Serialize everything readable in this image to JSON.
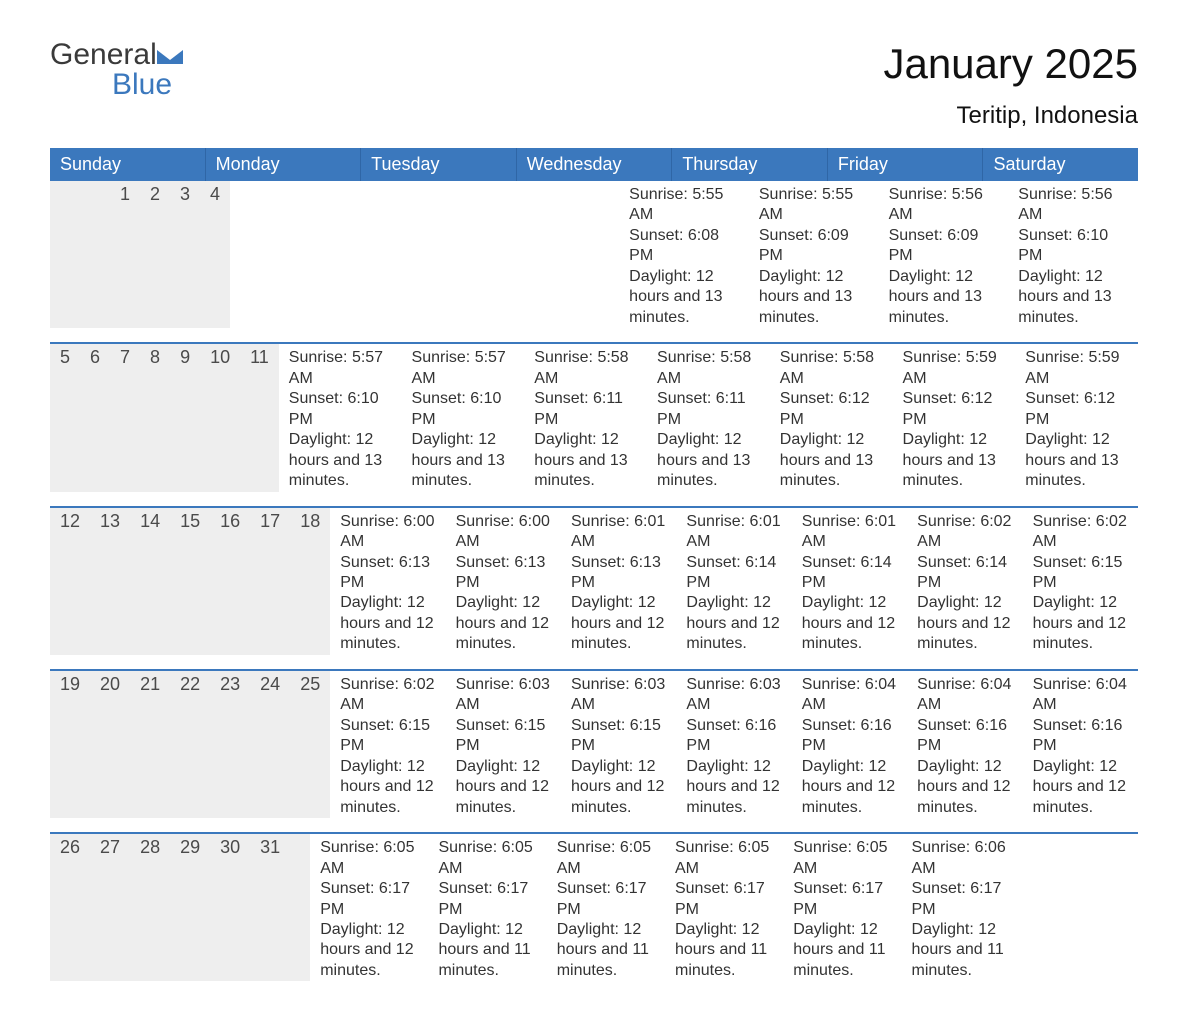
{
  "colors": {
    "accent": "#3b78bd",
    "accent_dark": "#2f66a6",
    "row_head_bg": "#eeeeee",
    "text": "#222222",
    "background": "#ffffff"
  },
  "logo": {
    "word1": "General",
    "word2": "Blue"
  },
  "title": "January 2025",
  "subtitle": "Teritip, Indonesia",
  "weekdays": [
    "Sunday",
    "Monday",
    "Tuesday",
    "Wednesday",
    "Thursday",
    "Friday",
    "Saturday"
  ],
  "weeks": [
    [
      null,
      null,
      null,
      {
        "n": "1",
        "sunrise": "Sunrise: 5:55 AM",
        "sunset": "Sunset: 6:08 PM",
        "daylight": "Daylight: 12 hours and 13 minutes."
      },
      {
        "n": "2",
        "sunrise": "Sunrise: 5:55 AM",
        "sunset": "Sunset: 6:09 PM",
        "daylight": "Daylight: 12 hours and 13 minutes."
      },
      {
        "n": "3",
        "sunrise": "Sunrise: 5:56 AM",
        "sunset": "Sunset: 6:09 PM",
        "daylight": "Daylight: 12 hours and 13 minutes."
      },
      {
        "n": "4",
        "sunrise": "Sunrise: 5:56 AM",
        "sunset": "Sunset: 6:10 PM",
        "daylight": "Daylight: 12 hours and 13 minutes."
      }
    ],
    [
      {
        "n": "5",
        "sunrise": "Sunrise: 5:57 AM",
        "sunset": "Sunset: 6:10 PM",
        "daylight": "Daylight: 12 hours and 13 minutes."
      },
      {
        "n": "6",
        "sunrise": "Sunrise: 5:57 AM",
        "sunset": "Sunset: 6:10 PM",
        "daylight": "Daylight: 12 hours and 13 minutes."
      },
      {
        "n": "7",
        "sunrise": "Sunrise: 5:58 AM",
        "sunset": "Sunset: 6:11 PM",
        "daylight": "Daylight: 12 hours and 13 minutes."
      },
      {
        "n": "8",
        "sunrise": "Sunrise: 5:58 AM",
        "sunset": "Sunset: 6:11 PM",
        "daylight": "Daylight: 12 hours and 13 minutes."
      },
      {
        "n": "9",
        "sunrise": "Sunrise: 5:58 AM",
        "sunset": "Sunset: 6:12 PM",
        "daylight": "Daylight: 12 hours and 13 minutes."
      },
      {
        "n": "10",
        "sunrise": "Sunrise: 5:59 AM",
        "sunset": "Sunset: 6:12 PM",
        "daylight": "Daylight: 12 hours and 13 minutes."
      },
      {
        "n": "11",
        "sunrise": "Sunrise: 5:59 AM",
        "sunset": "Sunset: 6:12 PM",
        "daylight": "Daylight: 12 hours and 13 minutes."
      }
    ],
    [
      {
        "n": "12",
        "sunrise": "Sunrise: 6:00 AM",
        "sunset": "Sunset: 6:13 PM",
        "daylight": "Daylight: 12 hours and 12 minutes."
      },
      {
        "n": "13",
        "sunrise": "Sunrise: 6:00 AM",
        "sunset": "Sunset: 6:13 PM",
        "daylight": "Daylight: 12 hours and 12 minutes."
      },
      {
        "n": "14",
        "sunrise": "Sunrise: 6:01 AM",
        "sunset": "Sunset: 6:13 PM",
        "daylight": "Daylight: 12 hours and 12 minutes."
      },
      {
        "n": "15",
        "sunrise": "Sunrise: 6:01 AM",
        "sunset": "Sunset: 6:14 PM",
        "daylight": "Daylight: 12 hours and 12 minutes."
      },
      {
        "n": "16",
        "sunrise": "Sunrise: 6:01 AM",
        "sunset": "Sunset: 6:14 PM",
        "daylight": "Daylight: 12 hours and 12 minutes."
      },
      {
        "n": "17",
        "sunrise": "Sunrise: 6:02 AM",
        "sunset": "Sunset: 6:14 PM",
        "daylight": "Daylight: 12 hours and 12 minutes."
      },
      {
        "n": "18",
        "sunrise": "Sunrise: 6:02 AM",
        "sunset": "Sunset: 6:15 PM",
        "daylight": "Daylight: 12 hours and 12 minutes."
      }
    ],
    [
      {
        "n": "19",
        "sunrise": "Sunrise: 6:02 AM",
        "sunset": "Sunset: 6:15 PM",
        "daylight": "Daylight: 12 hours and 12 minutes."
      },
      {
        "n": "20",
        "sunrise": "Sunrise: 6:03 AM",
        "sunset": "Sunset: 6:15 PM",
        "daylight": "Daylight: 12 hours and 12 minutes."
      },
      {
        "n": "21",
        "sunrise": "Sunrise: 6:03 AM",
        "sunset": "Sunset: 6:15 PM",
        "daylight": "Daylight: 12 hours and 12 minutes."
      },
      {
        "n": "22",
        "sunrise": "Sunrise: 6:03 AM",
        "sunset": "Sunset: 6:16 PM",
        "daylight": "Daylight: 12 hours and 12 minutes."
      },
      {
        "n": "23",
        "sunrise": "Sunrise: 6:04 AM",
        "sunset": "Sunset: 6:16 PM",
        "daylight": "Daylight: 12 hours and 12 minutes."
      },
      {
        "n": "24",
        "sunrise": "Sunrise: 6:04 AM",
        "sunset": "Sunset: 6:16 PM",
        "daylight": "Daylight: 12 hours and 12 minutes."
      },
      {
        "n": "25",
        "sunrise": "Sunrise: 6:04 AM",
        "sunset": "Sunset: 6:16 PM",
        "daylight": "Daylight: 12 hours and 12 minutes."
      }
    ],
    [
      {
        "n": "26",
        "sunrise": "Sunrise: 6:05 AM",
        "sunset": "Sunset: 6:17 PM",
        "daylight": "Daylight: 12 hours and 12 minutes."
      },
      {
        "n": "27",
        "sunrise": "Sunrise: 6:05 AM",
        "sunset": "Sunset: 6:17 PM",
        "daylight": "Daylight: 12 hours and 11 minutes."
      },
      {
        "n": "28",
        "sunrise": "Sunrise: 6:05 AM",
        "sunset": "Sunset: 6:17 PM",
        "daylight": "Daylight: 12 hours and 11 minutes."
      },
      {
        "n": "29",
        "sunrise": "Sunrise: 6:05 AM",
        "sunset": "Sunset: 6:17 PM",
        "daylight": "Daylight: 12 hours and 11 minutes."
      },
      {
        "n": "30",
        "sunrise": "Sunrise: 6:05 AM",
        "sunset": "Sunset: 6:17 PM",
        "daylight": "Daylight: 12 hours and 11 minutes."
      },
      {
        "n": "31",
        "sunrise": "Sunrise: 6:06 AM",
        "sunset": "Sunset: 6:17 PM",
        "daylight": "Daylight: 12 hours and 11 minutes."
      },
      null
    ]
  ]
}
